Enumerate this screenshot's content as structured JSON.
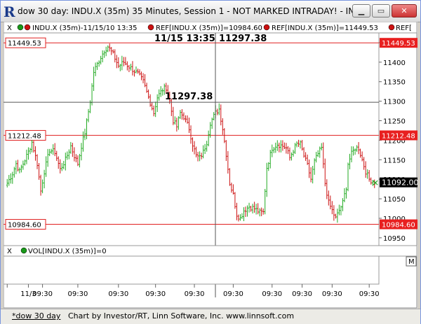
{
  "window": {
    "title": "dow 30 day: INDU.X (35m) 35 Minutes, Session 1 - NOT MARKED INTRADAY! - IN...",
    "app_icon": "R",
    "minimize_icon": "minimize-icon",
    "maximize_icon": "maximize-icon",
    "close_icon": "close-icon"
  },
  "chart_legend": {
    "close_glyph": "X",
    "main": "INDU.X (35m)-11/15/10 13:35",
    "ref1": "REF[INDU.X (35m)]=10984.60",
    "ref2": "REF[INDU.X (35m)]=11449.53",
    "ref3": "REF["
  },
  "volume_legend": {
    "close_glyph": "X",
    "label": "VOL[INDU.X (35m)]=0",
    "m_button": "M"
  },
  "colors": {
    "up": "#22aa22",
    "down": "#cc1111",
    "ref_line": "#e02020",
    "price_tag_bg": "#e82020",
    "current_tag_bg": "#000000"
  },
  "cursor": {
    "time_label": "11/15 13:35",
    "price_label": "11297.38",
    "crosshair_value": "11297.38"
  },
  "ref_lines": [
    {
      "value": 11449.53,
      "left_label": "11449.53",
      "right_label": "11449.53"
    },
    {
      "value": 11212.48,
      "left_label": "11212.48",
      "right_label": "11212.48"
    },
    {
      "value": 10984.6,
      "left_label": "10984.60",
      "right_label": "10984.60"
    }
  ],
  "current_price": {
    "value": 11092.0,
    "label": "11092.00"
  },
  "status": {
    "left_link": "*dow 30 day",
    "credit": "Chart by Investor/RT, Linn Software, Inc. www.linnsoft.com"
  },
  "chart_data": {
    "type": "candlestick",
    "title": "",
    "xlabel": "",
    "ylabel": "",
    "ylim": [
      10930,
      11475
    ],
    "yticks": [
      10950,
      11000,
      11050,
      11100,
      11150,
      11200,
      11250,
      11300,
      11350,
      11400,
      11450
    ],
    "grid": false,
    "xticks": [
      {
        "bar": 0,
        "label": ""
      },
      {
        "bar": 12,
        "label": "11/3"
      },
      {
        "bar": 20,
        "label": "09:30"
      },
      {
        "bar": 40,
        "label": "09:30"
      },
      {
        "bar": 63,
        "label": "09:30"
      },
      {
        "bar": 84,
        "label": "09:30"
      },
      {
        "bar": 106,
        "label": "09:30"
      },
      {
        "bar": 128,
        "label": "09:30"
      },
      {
        "bar": 150,
        "label": "09:30"
      },
      {
        "bar": 167,
        "label": "09:30"
      },
      {
        "bar": 184,
        "label": "09:30"
      },
      {
        "bar": 205,
        "label": "09:30"
      }
    ],
    "path": [
      [
        0,
        11090
      ],
      [
        3,
        11115
      ],
      [
        5,
        11140
      ],
      [
        7,
        11120
      ],
      [
        10,
        11150
      ],
      [
        12,
        11170
      ],
      [
        14,
        11195
      ],
      [
        17,
        11140
      ],
      [
        19,
        11070
      ],
      [
        21,
        11120
      ],
      [
        24,
        11175
      ],
      [
        27,
        11170
      ],
      [
        30,
        11125
      ],
      [
        33,
        11150
      ],
      [
        36,
        11185
      ],
      [
        38,
        11160
      ],
      [
        40,
        11140
      ],
      [
        42,
        11185
      ],
      [
        44,
        11220
      ],
      [
        47,
        11300
      ],
      [
        49,
        11375
      ],
      [
        52,
        11405
      ],
      [
        55,
        11430
      ],
      [
        57,
        11440
      ],
      [
        60,
        11420
      ],
      [
        63,
        11390
      ],
      [
        66,
        11400
      ],
      [
        70,
        11385
      ],
      [
        74,
        11370
      ],
      [
        77,
        11350
      ],
      [
        80,
        11310
      ],
      [
        83,
        11270
      ],
      [
        85,
        11310
      ],
      [
        88,
        11330
      ],
      [
        90,
        11335
      ],
      [
        92,
        11300
      ],
      [
        94,
        11250
      ],
      [
        96,
        11235
      ],
      [
        98,
        11270
      ],
      [
        100,
        11260
      ],
      [
        103,
        11230
      ],
      [
        105,
        11190
      ],
      [
        107,
        11160
      ],
      [
        109,
        11155
      ],
      [
        111,
        11170
      ],
      [
        113,
        11195
      ],
      [
        115,
        11245
      ],
      [
        118,
        11270
      ],
      [
        120,
        11280
      ],
      [
        122,
        11230
      ],
      [
        124,
        11165
      ],
      [
        126,
        11090
      ],
      [
        128,
        11060
      ],
      [
        130,
        11010
      ],
      [
        132,
        11000
      ],
      [
        134,
        11020
      ],
      [
        137,
        11030
      ],
      [
        140,
        11025
      ],
      [
        143,
        11015
      ],
      [
        145,
        11015
      ],
      [
        147,
        11130
      ],
      [
        150,
        11180
      ],
      [
        153,
        11190
      ],
      [
        156,
        11185
      ],
      [
        158,
        11180
      ],
      [
        160,
        11155
      ],
      [
        162,
        11175
      ],
      [
        164,
        11190
      ],
      [
        166,
        11190
      ],
      [
        168,
        11160
      ],
      [
        170,
        11135
      ],
      [
        172,
        11100
      ],
      [
        174,
        11145
      ],
      [
        176,
        11165
      ],
      [
        178,
        11180
      ],
      [
        180,
        11090
      ],
      [
        182,
        11040
      ],
      [
        184,
        11020
      ],
      [
        186,
        11000
      ],
      [
        188,
        11020
      ],
      [
        190,
        11040
      ],
      [
        192,
        11080
      ],
      [
        193,
        11140
      ],
      [
        195,
        11165
      ],
      [
        197,
        11180
      ],
      [
        199,
        11180
      ],
      [
        201,
        11150
      ],
      [
        203,
        11120
      ],
      [
        205,
        11100
      ],
      [
        208,
        11092
      ]
    ]
  }
}
